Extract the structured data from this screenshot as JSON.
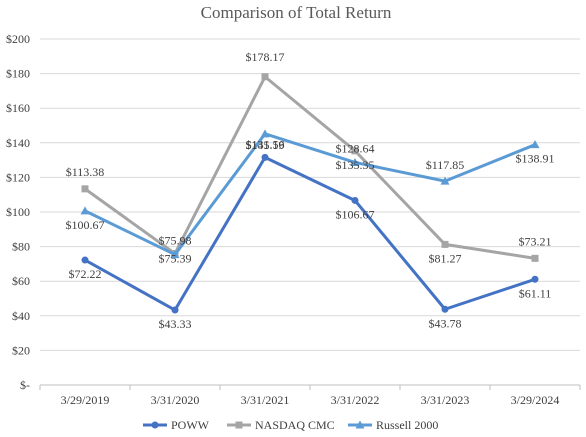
{
  "chart_data": {
    "type": "line",
    "title": "Comparison of Total Return",
    "categories": [
      "3/29/2019",
      "3/31/2020",
      "3/31/2021",
      "3/31/2022",
      "3/31/2023",
      "3/29/2024"
    ],
    "ylim": [
      0,
      200
    ],
    "yticks": [
      0,
      20,
      40,
      60,
      80,
      100,
      120,
      140,
      160,
      180,
      200
    ],
    "ytick_labels": [
      "$-",
      "$20",
      "$40",
      "$60",
      "$80",
      "$100",
      "$120",
      "$140",
      "$160",
      "$180",
      "$200"
    ],
    "grid": "horizontal",
    "legend_position": "bottom",
    "series": [
      {
        "name": "POWW",
        "color": "#4472C4",
        "marker": "circle",
        "values": [
          72.22,
          43.33,
          131.56,
          106.67,
          43.78,
          61.11
        ],
        "labels": [
          "$72.22",
          "$43.33",
          "$131.56",
          "$106.67",
          "$43.78",
          "$61.11"
        ]
      },
      {
        "name": "NASDAQ CMC",
        "color": "#A5A5A5",
        "marker": "square",
        "values": [
          113.38,
          75.98,
          178.17,
          135.35,
          81.27,
          73.21
        ],
        "labels": [
          "$113.38",
          "$75.98",
          "$178.17",
          "$135.35",
          "$81.27",
          "$73.21"
        ]
      },
      {
        "name": "Russell 2000",
        "color": "#5B9BD5",
        "marker": "triangle",
        "values": [
          100.67,
          75.39,
          145.19,
          128.64,
          117.85,
          138.91
        ],
        "labels": [
          "$100.67",
          "$75.39",
          "$145.19",
          "$128.64",
          "$117.85",
          "$138.91"
        ]
      }
    ]
  }
}
